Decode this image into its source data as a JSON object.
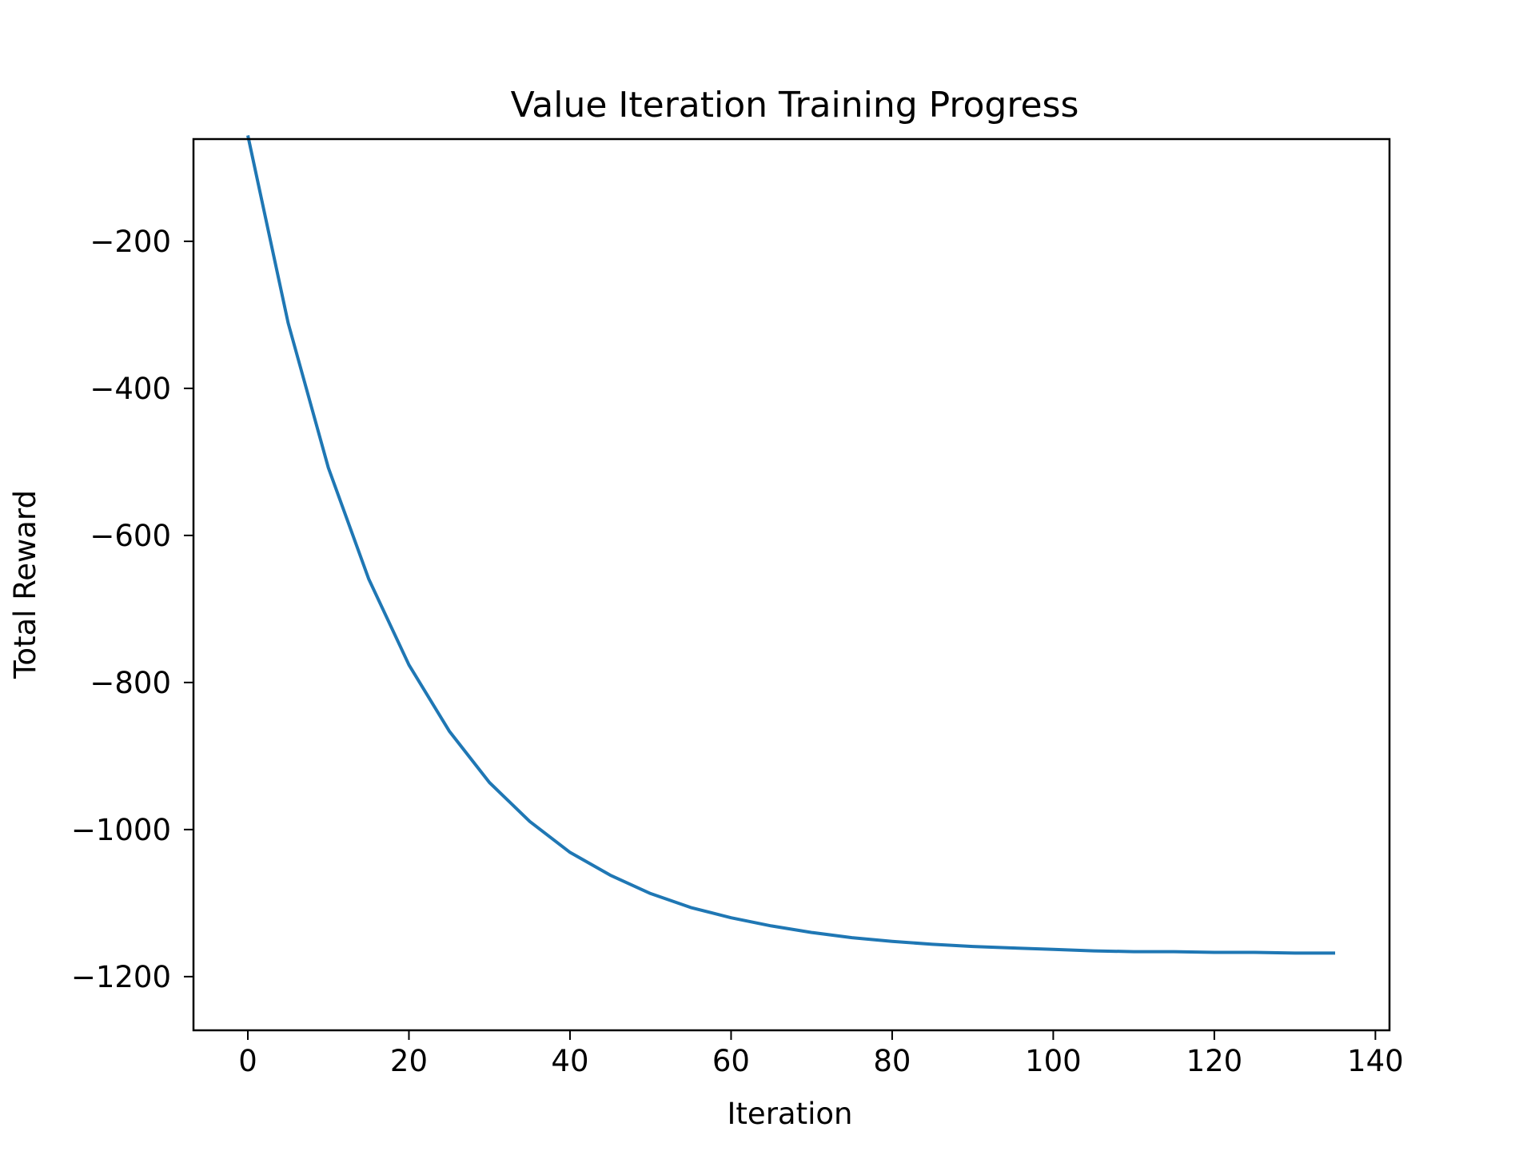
{
  "chart_data": {
    "type": "line",
    "title": "Value Iteration Training Progress",
    "xlabel": "Iteration",
    "ylabel": "Total Reward",
    "xlim": [
      -6.75,
      141.75
    ],
    "ylim": [
      -1273,
      -61
    ],
    "xticks": [
      0,
      20,
      40,
      60,
      80,
      100,
      120,
      140
    ],
    "xtick_labels": [
      "0",
      "20",
      "40",
      "60",
      "80",
      "100",
      "120",
      "140"
    ],
    "yticks": [
      -200,
      -400,
      -600,
      -800,
      -1000,
      -1200
    ],
    "ytick_labels": [
      "−200",
      "−400",
      "−600",
      "−800",
      "−1000",
      "−1200"
    ],
    "grid": false,
    "legend": "none",
    "series": [
      {
        "color": "#1f77b4",
        "x": [
          0,
          5,
          10,
          15,
          20,
          25,
          30,
          35,
          40,
          45,
          50,
          55,
          60,
          65,
          70,
          75,
          80,
          85,
          90,
          95,
          100,
          105,
          110,
          115,
          120,
          125,
          130,
          135
        ],
        "y": [
          -56,
          -311,
          -508,
          -659,
          -776,
          -866,
          -936,
          -989,
          -1031,
          -1062,
          -1087,
          -1106,
          -1120,
          -1131,
          -1140,
          -1147,
          -1152,
          -1156,
          -1159,
          -1161,
          -1163,
          -1165,
          -1166,
          -1166,
          -1167,
          -1167,
          -1168,
          -1168
        ]
      }
    ]
  }
}
